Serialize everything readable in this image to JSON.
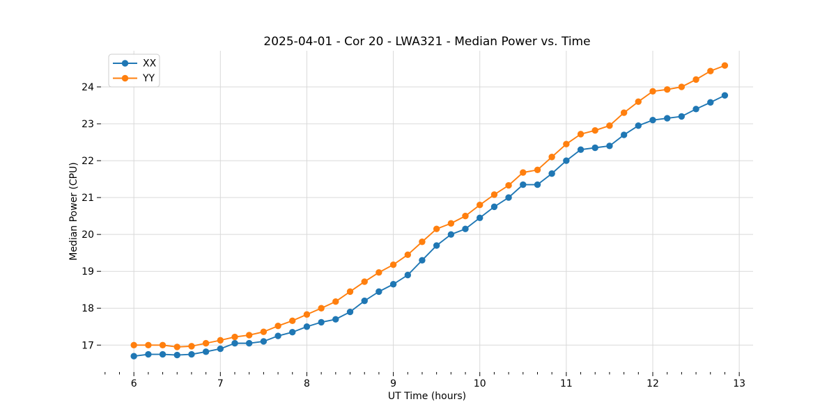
{
  "chart_data": {
    "type": "line",
    "title": "2025-04-01 - Cor 20 - LWA321 - Median Power vs. Time",
    "xlabel": "UT Time (hours)",
    "ylabel": "Median Power (CPU)",
    "x": [
      6.0,
      6.167,
      6.333,
      6.5,
      6.667,
      6.833,
      7.0,
      7.167,
      7.333,
      7.5,
      7.667,
      7.833,
      8.0,
      8.167,
      8.333,
      8.5,
      8.667,
      8.833,
      9.0,
      9.167,
      9.333,
      9.5,
      9.667,
      9.833,
      10.0,
      10.167,
      10.333,
      10.5,
      10.667,
      10.833,
      11.0,
      11.167,
      11.333,
      11.5,
      11.667,
      11.833,
      12.0,
      12.167,
      12.333,
      12.5,
      12.667,
      12.833
    ],
    "series": [
      {
        "name": "XX",
        "color": "#1f77b4",
        "marker": "circle",
        "values": [
          16.7,
          16.75,
          16.75,
          16.73,
          16.75,
          16.82,
          16.9,
          17.05,
          17.05,
          17.1,
          17.25,
          17.35,
          17.5,
          17.62,
          17.7,
          17.9,
          18.2,
          18.45,
          18.65,
          18.9,
          19.3,
          19.7,
          20.0,
          20.15,
          20.45,
          20.75,
          21.0,
          21.35,
          21.35,
          21.65,
          22.0,
          22.3,
          22.35,
          22.4,
          22.7,
          22.95,
          23.1,
          23.15,
          23.2,
          23.4,
          23.58,
          23.77
        ]
      },
      {
        "name": "YY",
        "color": "#ff7f0e",
        "marker": "circle",
        "values": [
          17.0,
          17.0,
          17.0,
          16.95,
          16.97,
          17.05,
          17.13,
          17.22,
          17.27,
          17.36,
          17.52,
          17.66,
          17.83,
          18.0,
          18.18,
          18.45,
          18.72,
          18.97,
          19.18,
          19.45,
          19.8,
          20.15,
          20.3,
          20.5,
          20.8,
          21.08,
          21.33,
          21.68,
          21.75,
          22.1,
          22.45,
          22.72,
          22.82,
          22.95,
          23.3,
          23.6,
          23.88,
          23.93,
          24.0,
          24.2,
          24.43,
          24.58
        ]
      }
    ],
    "axes": {
      "xlim": [
        5.62,
        13.16
      ],
      "ylim": [
        16.27,
        24.98
      ],
      "xticks": [
        6,
        7,
        8,
        9,
        10,
        11,
        12,
        13
      ],
      "yticks": [
        17,
        18,
        19,
        20,
        21,
        22,
        23,
        24
      ],
      "x_minor_tick_step": 0.1667,
      "grid": true
    },
    "legend": {
      "position": "upper left",
      "labels": [
        "XX",
        "YY"
      ]
    }
  },
  "style": {
    "grid_color": "#d9d9d9",
    "spine_color": "#000000",
    "tick_color": "#000000",
    "text_color": "#000000",
    "legend_border_color": "#cccccc",
    "legend_bg_color": "#ffffff",
    "background_color": "#ffffff"
  }
}
